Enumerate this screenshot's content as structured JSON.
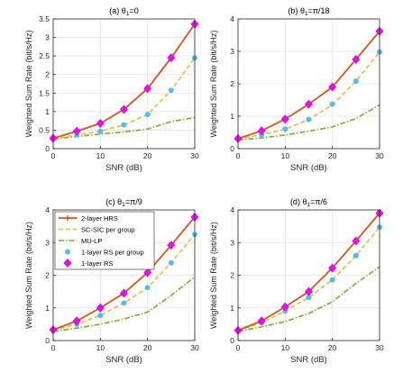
{
  "legend_symbols": {
    "hrs": "plus-line",
    "scsic": "dashed-line",
    "mulp": "dash-dot-line",
    "rs_group": "circle-marker",
    "rs_1layer": "diamond-marker"
  },
  "colors": {
    "hrs": "#d95319",
    "scsic": "#f2b43c",
    "mulp": "#77ac30",
    "rs_group": "#4dbeee",
    "rs_1layer": "#ff00ff"
  },
  "chart_data": [
    {
      "type": "line",
      "title": "(a) θ",
      "title_sub": "1",
      "title_rest": "=0",
      "xlabel": "SNR (dB)",
      "ylabel": "Weighted Sum Rate (bit/s/Hz)",
      "xlim": [
        0,
        30
      ],
      "ylim": [
        0,
        3.5
      ],
      "xticks": [
        0,
        10,
        20,
        30
      ],
      "xtick_labels": [
        "0",
        "10",
        "20",
        "30"
      ],
      "yticks": [
        0,
        0.5,
        1,
        1.5,
        2,
        2.5,
        3,
        3.5
      ],
      "ytick_labels": [
        "0",
        "0.5",
        "1",
        "1.5",
        "2",
        "2.5",
        "3",
        "3.5"
      ],
      "grid": true,
      "x": [
        0,
        5,
        10,
        15,
        20,
        25,
        30
      ],
      "series": [
        {
          "key": "hrs",
          "values": [
            0.28,
            0.47,
            0.68,
            1.06,
            1.62,
            2.45,
            3.36
          ]
        },
        {
          "key": "scsic",
          "values": [
            0.27,
            0.37,
            0.47,
            0.64,
            0.92,
            1.57,
            2.45
          ]
        },
        {
          "key": "mulp",
          "values": [
            0.26,
            0.33,
            0.39,
            0.45,
            0.53,
            0.73,
            0.84
          ]
        },
        {
          "key": "rs_group",
          "values": [
            0.27,
            0.37,
            0.47,
            0.64,
            0.92,
            1.57,
            2.45
          ]
        },
        {
          "key": "rs_1layer",
          "values": [
            0.28,
            0.47,
            0.68,
            1.06,
            1.62,
            2.45,
            3.36
          ]
        }
      ]
    },
    {
      "type": "line",
      "title": "(b) θ",
      "title_sub": "1",
      "title_rest": "=π/18",
      "xlabel": "SNR (dB)",
      "ylabel": "Weighted Sum Rate (bit/s/Hz)",
      "xlim": [
        0,
        30
      ],
      "ylim": [
        0,
        4
      ],
      "xticks": [
        0,
        10,
        20,
        30
      ],
      "xtick_labels": [
        "0",
        "10",
        "20",
        "30"
      ],
      "yticks": [
        0,
        1,
        2,
        3,
        4
      ],
      "ytick_labels": [
        "0",
        "1",
        "2",
        "3",
        "4"
      ],
      "grid": true,
      "x": [
        0,
        5,
        10,
        15,
        20,
        25,
        30
      ],
      "series": [
        {
          "key": "hrs",
          "values": [
            0.31,
            0.55,
            0.91,
            1.37,
            1.9,
            2.75,
            3.62
          ]
        },
        {
          "key": "scsic",
          "values": [
            0.3,
            0.43,
            0.6,
            0.9,
            1.35,
            2.08,
            2.98
          ]
        },
        {
          "key": "mulp",
          "values": [
            0.27,
            0.33,
            0.42,
            0.54,
            0.67,
            0.93,
            1.35
          ]
        },
        {
          "key": "rs_group",
          "values": [
            0.3,
            0.43,
            0.6,
            0.9,
            1.37,
            2.08,
            2.98
          ]
        },
        {
          "key": "rs_1layer",
          "values": [
            0.31,
            0.55,
            0.91,
            1.37,
            1.9,
            2.75,
            3.62
          ]
        }
      ]
    },
    {
      "type": "line",
      "title": "(c) θ",
      "title_sub": "1",
      "title_rest": "=π/9",
      "xlabel": "SNR (dB)",
      "ylabel": "Weighted Sum Rate (bit/s/Hz)",
      "xlim": [
        0,
        30
      ],
      "ylim": [
        0,
        4
      ],
      "xticks": [
        0,
        10,
        20,
        30
      ],
      "xtick_labels": [
        "0",
        "10",
        "20",
        "30"
      ],
      "yticks": [
        0,
        1,
        2,
        3,
        4
      ],
      "ytick_labels": [
        "0",
        "1",
        "2",
        "3",
        "4"
      ],
      "grid": true,
      "legend": {
        "placement": "top-left",
        "entries": [
          {
            "key": "hrs",
            "label": "2-layer HRS"
          },
          {
            "key": "scsic",
            "label": "SC-SIC per group"
          },
          {
            "key": "mulp",
            "label": "MU-LP"
          },
          {
            "key": "rs_group",
            "label": "1-layer RS per group"
          },
          {
            "key": "rs_1layer",
            "label": "1-layer RS"
          }
        ]
      },
      "x": [
        0,
        5,
        10,
        15,
        20,
        25,
        30
      ],
      "series": [
        {
          "key": "hrs",
          "values": [
            0.33,
            0.6,
            1.0,
            1.45,
            2.08,
            2.92,
            3.78
          ]
        },
        {
          "key": "scsic",
          "values": [
            0.32,
            0.5,
            0.77,
            1.15,
            1.62,
            2.38,
            3.25
          ]
        },
        {
          "key": "mulp",
          "values": [
            0.28,
            0.38,
            0.5,
            0.66,
            0.87,
            1.38,
            1.95
          ]
        },
        {
          "key": "rs_group",
          "values": [
            0.32,
            0.5,
            0.77,
            1.15,
            1.62,
            2.38,
            3.25
          ]
        },
        {
          "key": "rs_1layer",
          "values": [
            0.33,
            0.6,
            1.0,
            1.45,
            2.08,
            2.92,
            3.78
          ]
        }
      ]
    },
    {
      "type": "line",
      "title": "(d) θ",
      "title_sub": "1",
      "title_rest": "=π/6",
      "xlabel": "SNR (dB)",
      "ylabel": "Weighted Sum Rate (bit/s/Hz)",
      "xlim": [
        0,
        30
      ],
      "ylim": [
        0,
        4
      ],
      "xticks": [
        0,
        10,
        20,
        30
      ],
      "xtick_labels": [
        "0",
        "10",
        "20",
        "30"
      ],
      "yticks": [
        0,
        1,
        2,
        3,
        4
      ],
      "ytick_labels": [
        "0",
        "1",
        "2",
        "3",
        "4"
      ],
      "grid": true,
      "x": [
        0,
        5,
        10,
        15,
        20,
        25,
        30
      ],
      "series": [
        {
          "key": "hrs",
          "values": [
            0.31,
            0.6,
            1.03,
            1.5,
            2.22,
            3.05,
            3.9
          ]
        },
        {
          "key": "scsic",
          "values": [
            0.3,
            0.55,
            0.9,
            1.32,
            1.86,
            2.6,
            3.47
          ]
        },
        {
          "key": "mulp",
          "values": [
            0.28,
            0.42,
            0.58,
            0.83,
            1.19,
            1.75,
            2.26
          ]
        },
        {
          "key": "rs_group",
          "values": [
            0.3,
            0.55,
            0.9,
            1.32,
            1.86,
            2.6,
            3.47
          ]
        },
        {
          "key": "rs_1layer",
          "values": [
            0.31,
            0.6,
            1.03,
            1.5,
            2.22,
            3.05,
            3.9
          ]
        }
      ]
    }
  ]
}
